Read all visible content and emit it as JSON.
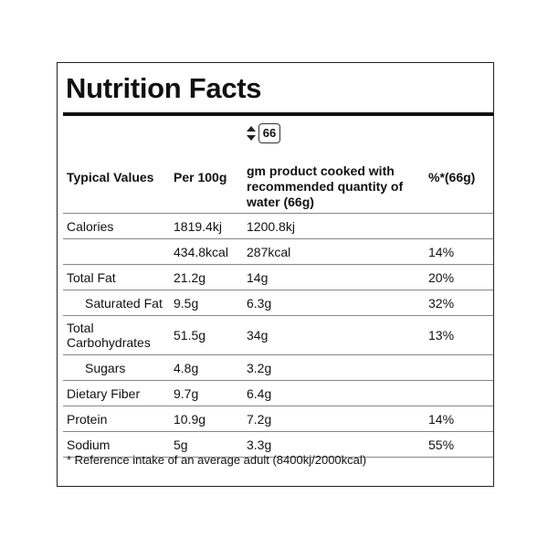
{
  "header": {
    "title": "Nutrition Facts"
  },
  "quantity": "66",
  "table": {
    "columns": [
      "Typical Values",
      "Per 100g",
      "gm product cooked with recommended quantity of water (66g)",
      "%*(66g)"
    ],
    "rows": [
      [
        "Calories",
        "1819.4kj",
        "1200.8kj",
        null
      ],
      [
        null,
        "434.8kcal",
        "287kcal",
        "14%"
      ],
      [
        "Total Fat",
        "21.2g",
        "14g",
        "20%"
      ],
      [
        "Saturated Fat",
        "9.5g",
        "6.3g",
        "32%"
      ],
      [
        "Total Carbohydrates",
        "51.5g",
        "34g",
        "13%"
      ],
      [
        "Sugars",
        "4.8g",
        "3.2g",
        null
      ],
      [
        "Dietary Fiber",
        "9.7g",
        "6.4g",
        null
      ],
      [
        "Protein",
        "10.9g",
        "7.2g",
        "14%"
      ],
      [
        "Sodium",
        "5g",
        "3.3g",
        "55%"
      ]
    ]
  },
  "footnote": "* Reference intake of an average adult (8400kj/2000kcal)"
}
